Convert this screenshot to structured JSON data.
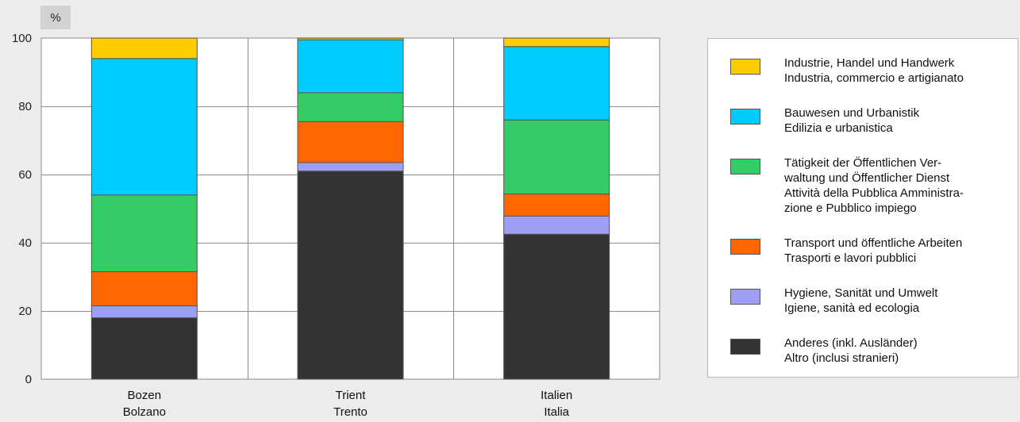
{
  "unit_label": "%",
  "chart_data": {
    "type": "bar",
    "stacked": true,
    "categories": [
      {
        "line1": "Bozen",
        "line2": "Bolzano"
      },
      {
        "line1": "Trient",
        "line2": "Trento"
      },
      {
        "line1": "Italien",
        "line2": "Italia"
      }
    ],
    "ylim": [
      0,
      100
    ],
    "yticks": [
      0,
      20,
      40,
      60,
      80,
      100
    ],
    "grid": true,
    "legend_position": "right",
    "series": [
      {
        "key": "other",
        "lines": [
          "Anderes (inkl. Ausländer)",
          "Altro (inclusi stranieri)"
        ],
        "color": "#333333",
        "values": [
          18,
          61,
          42.5
        ]
      },
      {
        "key": "health",
        "lines": [
          "Hygiene, Sanität und Umwelt",
          "Igiene, sanità ed ecologia"
        ],
        "color": "#9e9ef5",
        "values": [
          3.5,
          2.5,
          5.3
        ]
      },
      {
        "key": "transport",
        "lines": [
          "Transport und öffentliche Arbeiten",
          "Trasporti e lavori pubblici"
        ],
        "color": "#ff6600",
        "values": [
          10,
          12,
          6.5
        ]
      },
      {
        "key": "public",
        "lines": [
          "Tätigkeit der Öffentlichen Ver-",
          "waltung und Öffentlicher Dienst",
          "Attività della Pubblica Amministra-",
          "zione e Pubblico impiego"
        ],
        "color": "#33cc66",
        "values": [
          22.5,
          8.5,
          21.7
        ]
      },
      {
        "key": "construction",
        "lines": [
          "Bauwesen und Urbanistik",
          "Edilizia e urbanistica"
        ],
        "color": "#00ccff",
        "values": [
          40,
          15.5,
          21.5
        ]
      },
      {
        "key": "industry",
        "lines": [
          "Industrie, Handel und Handwerk",
          "Industria, commercio e artigianato"
        ],
        "color": "#ffcc00",
        "values": [
          6,
          0.5,
          2.5
        ]
      }
    ]
  }
}
